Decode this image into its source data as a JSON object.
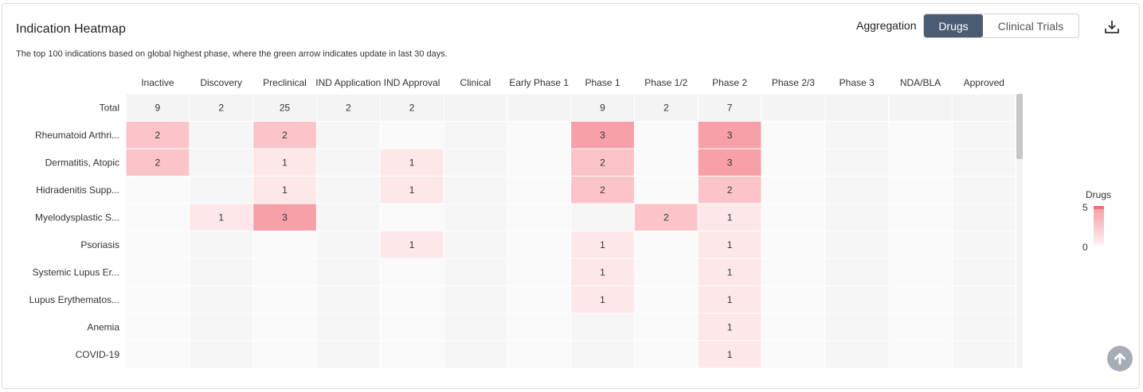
{
  "header": {
    "title": "Indication Heatmap",
    "subtitle": "The top 100 indications based on global highest phase, where the green arrow indicates update in last 30 days.",
    "aggregation_label": "Aggregation",
    "tabs": [
      {
        "label": "Drugs",
        "active": true
      },
      {
        "label": "Clinical Trials",
        "active": false
      }
    ],
    "download_icon": "download-icon",
    "scroll_top_icon": "arrow-up-icon"
  },
  "colors": {
    "low": "#fde7e9",
    "high": "#f7a0a8",
    "empty_a": "#f6f6f7",
    "empty_b": "#fafafa",
    "total_row": "#f4f4f5",
    "accent": "#4a5b74"
  },
  "chart_data": {
    "type": "heatmap",
    "title": "Indication Heatmap",
    "x_categories": [
      "Inactive",
      "Discovery",
      "Preclinical",
      "IND Application",
      "IND Approval",
      "Clinical",
      "Early Phase 1",
      "Phase 1",
      "Phase 1/2",
      "Phase 2",
      "Phase 2/3",
      "Phase 3",
      "NDA/BLA",
      "Approved"
    ],
    "y_categories": [
      "Total",
      "Rheumatoid Arthri...",
      "Dermatitis, Atopic",
      "Hidradenitis Supp...",
      "Myelodysplastic S...",
      "Psoriasis",
      "Systemic Lupus Er...",
      "Lupus Erythematos...",
      "Anemia",
      "COVID-19"
    ],
    "values": [
      [
        9,
        2,
        25,
        2,
        2,
        null,
        null,
        9,
        2,
        7,
        null,
        null,
        null,
        null
      ],
      [
        2,
        null,
        2,
        null,
        null,
        null,
        null,
        3,
        null,
        3,
        null,
        null,
        null,
        null
      ],
      [
        2,
        null,
        1,
        null,
        1,
        null,
        null,
        2,
        null,
        3,
        null,
        null,
        null,
        null
      ],
      [
        null,
        null,
        1,
        null,
        1,
        null,
        null,
        2,
        null,
        2,
        null,
        null,
        null,
        null
      ],
      [
        null,
        1,
        3,
        null,
        null,
        null,
        null,
        null,
        2,
        1,
        null,
        null,
        null,
        null
      ],
      [
        null,
        null,
        null,
        null,
        1,
        null,
        null,
        1,
        null,
        1,
        null,
        null,
        null,
        null
      ],
      [
        null,
        null,
        null,
        null,
        null,
        null,
        null,
        1,
        null,
        1,
        null,
        null,
        null,
        null
      ],
      [
        null,
        null,
        null,
        null,
        null,
        null,
        null,
        1,
        null,
        1,
        null,
        null,
        null,
        null
      ],
      [
        null,
        null,
        null,
        null,
        null,
        null,
        null,
        null,
        null,
        1,
        null,
        null,
        null,
        null
      ],
      [
        null,
        null,
        null,
        null,
        null,
        null,
        null,
        null,
        null,
        1,
        null,
        null,
        null,
        null
      ]
    ],
    "total_row_index": 0,
    "legend": {
      "title": "Drugs",
      "min": 0,
      "max": 5,
      "placement": "right"
    }
  }
}
